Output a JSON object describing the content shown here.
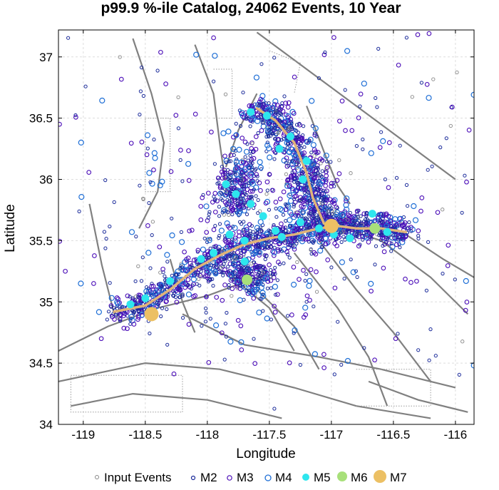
{
  "chart_data": {
    "type": "scatter",
    "title": "p99.9 %-ile Catalog, 24062 Events, 10 Year",
    "xlabel": "Longitude",
    "ylabel": "Latitude",
    "xlim": [
      -119.2,
      -115.85
    ],
    "ylim": [
      34.0,
      37.22
    ],
    "xticks": [
      -119,
      -118.5,
      -118,
      -117.5,
      -117,
      -116.5,
      -116
    ],
    "xtick_labels": [
      "-119",
      "-118.5",
      "-118",
      "-117.5",
      "-117",
      "-116.5",
      "-116"
    ],
    "yticks": [
      34,
      34.5,
      35,
      35.5,
      36,
      36.5,
      37
    ],
    "ytick_labels": [
      "34",
      "34.5",
      "35",
      "35.5",
      "36",
      "36.5",
      "37"
    ],
    "grid": true,
    "legend_position": "bottom",
    "legend": [
      "Input Events",
      "M2",
      "M3",
      "M4",
      "M5",
      "M6",
      "M7"
    ],
    "colors": {
      "input": "#888888",
      "M2": "#1a2a9a",
      "M3": "#4b0db8",
      "M4": "#1f6fd6",
      "M5": "#2ee6ee",
      "M6": "#a8e07a",
      "M7": "#ecc064",
      "faults": "#808080",
      "rupture": "#e0b47a"
    },
    "rupture_trace": [
      [
        -118.75,
        34.92
      ],
      [
        -118.5,
        34.97
      ],
      [
        -118.3,
        35.1
      ],
      [
        -118.1,
        35.27
      ],
      [
        -117.9,
        35.38
      ],
      [
        -117.7,
        35.47
      ],
      [
        -117.5,
        35.52
      ],
      [
        -117.3,
        35.55
      ],
      [
        -117.1,
        35.6
      ],
      [
        -116.95,
        35.62
      ],
      [
        -116.8,
        35.6
      ],
      [
        -116.6,
        35.6
      ],
      [
        -116.4,
        35.57
      ]
    ],
    "rupture_trace_north": [
      [
        -117.06,
        35.64
      ],
      [
        -117.15,
        35.85
      ],
      [
        -117.2,
        36.05
      ],
      [
        -117.3,
        36.3
      ],
      [
        -117.45,
        36.48
      ],
      [
        -117.6,
        36.58
      ]
    ],
    "m7_events": [
      {
        "lon": -117.0,
        "lat": 35.62
      },
      {
        "lon": -118.45,
        "lat": 34.9
      }
    ],
    "m6_events": [
      {
        "lon": -117.68,
        "lat": 35.18
      },
      {
        "lon": -116.65,
        "lat": 35.6
      }
    ],
    "m5_events": [
      {
        "lon": -117.65,
        "lat": 36.55
      },
      {
        "lon": -117.52,
        "lat": 36.52
      },
      {
        "lon": -117.33,
        "lat": 36.35
      },
      {
        "lon": -117.42,
        "lat": 36.25
      },
      {
        "lon": -117.2,
        "lat": 36.15
      },
      {
        "lon": -117.23,
        "lat": 36.0
      },
      {
        "lon": -117.85,
        "lat": 35.96
      },
      {
        "lon": -117.77,
        "lat": 35.88
      },
      {
        "lon": -117.65,
        "lat": 35.8
      },
      {
        "lon": -117.55,
        "lat": 35.7
      },
      {
        "lon": -117.82,
        "lat": 35.55
      },
      {
        "lon": -117.7,
        "lat": 35.5
      },
      {
        "lon": -117.45,
        "lat": 35.58
      },
      {
        "lon": -117.25,
        "lat": 35.65
      },
      {
        "lon": -116.98,
        "lat": 35.55
      },
      {
        "lon": -116.85,
        "lat": 35.52
      },
      {
        "lon": -116.55,
        "lat": 35.57
      },
      {
        "lon": -116.67,
        "lat": 35.72
      },
      {
        "lon": -117.95,
        "lat": 35.4
      },
      {
        "lon": -118.05,
        "lat": 35.35
      },
      {
        "lon": -117.7,
        "lat": 35.33
      },
      {
        "lon": -118.3,
        "lat": 35.17
      },
      {
        "lon": -118.5,
        "lat": 35.03
      },
      {
        "lon": -118.62,
        "lat": 34.98
      },
      {
        "lon": -117.4,
        "lat": 35.53
      },
      {
        "lon": -117.1,
        "lat": 35.6
      }
    ]
  },
  "legend_items": [
    {
      "label": "Input Events"
    },
    {
      "label": "M2"
    },
    {
      "label": "M3"
    },
    {
      "label": "M4"
    },
    {
      "label": "M5"
    },
    {
      "label": "M6"
    },
    {
      "label": "M7"
    }
  ]
}
